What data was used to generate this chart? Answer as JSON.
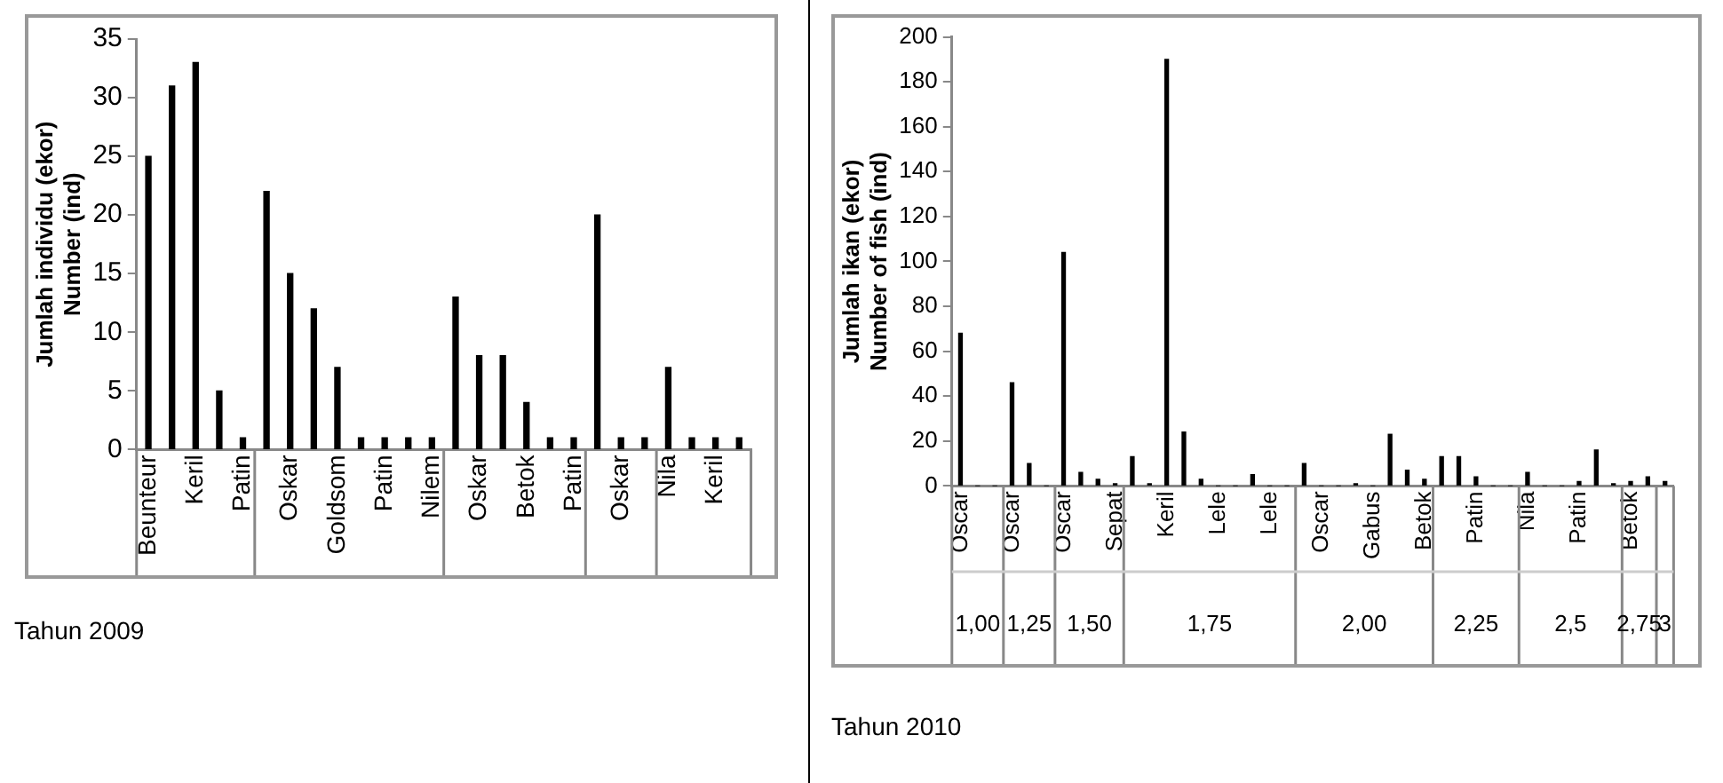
{
  "chart_data": [
    {
      "type": "bar",
      "title": "Tahun 2009",
      "ylabel": "Jumlah individu (ekor)\nNumber (ind)",
      "categories": [
        "Beunteur",
        null,
        "Keril",
        null,
        "Patin",
        null,
        "Oskar",
        null,
        "Goldsom",
        null,
        "Patin",
        null,
        "Nilem",
        null,
        "Oskar",
        null,
        "Betok",
        null,
        "Patin",
        null,
        "Oskar",
        null,
        "Nila",
        null,
        "Keril",
        null
      ],
      "values": [
        25,
        31,
        33,
        5,
        1,
        22,
        15,
        12,
        7,
        1,
        1,
        1,
        1,
        13,
        8,
        8,
        4,
        1,
        1,
        20,
        1,
        1,
        7,
        1,
        1,
        1
      ],
      "color": "#000000",
      "ylim": [
        0,
        35
      ],
      "yticks": [
        0,
        5,
        10,
        15,
        20,
        25,
        30,
        35
      ],
      "grid": false
    },
    {
      "type": "bar",
      "title": "Tahun 2010",
      "ylabel": "Jumlah ikan (ekor)\nNumber of fish (ind)",
      "categories": [
        "Oscar",
        null,
        null,
        "Oscar",
        null,
        null,
        "Oscar",
        null,
        null,
        "Sepat",
        null,
        null,
        "Keril",
        null,
        null,
        "Lele",
        null,
        null,
        "Lele",
        null,
        null,
        "Oscar",
        null,
        null,
        "Gabus",
        null,
        null,
        "Betok",
        null,
        null,
        "Patin",
        null,
        null,
        "Nila",
        null,
        null,
        "Patin",
        null,
        null,
        "Betok",
        null,
        null
      ],
      "values": [
        68,
        0,
        0,
        46,
        10,
        0,
        104,
        6,
        3,
        1,
        13,
        1,
        190,
        24,
        3,
        0,
        0,
        5,
        0,
        0,
        10,
        0,
        0,
        1,
        0,
        23,
        7,
        3,
        13,
        13,
        4,
        0,
        0,
        6,
        0,
        0,
        2,
        16,
        1,
        2,
        4,
        2
      ],
      "color": "#000000",
      "ylim": [
        0,
        200
      ],
      "yticks": [
        0,
        20,
        40,
        60,
        80,
        100,
        120,
        140,
        160,
        180,
        200
      ],
      "grid": false,
      "annotations": [
        "1,00",
        "1,25",
        "1,50",
        "1,75",
        "2,00",
        "2,25",
        "2,5",
        "2,75",
        "3"
      ]
    }
  ]
}
